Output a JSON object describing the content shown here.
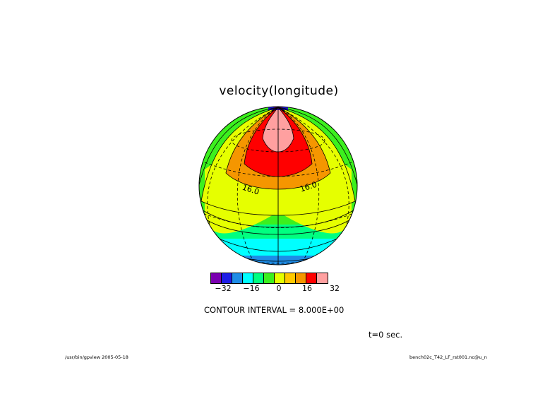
{
  "title": "velocity(longitude)",
  "contour_interval": "CONTOUR INTERVAL = 8.000E+00",
  "time_label": "t=0 sec.",
  "footer": {
    "left": "/usr/bin/gpview  2005-05-18",
    "right": "bench02c_T42_LF_rst001.nc@u_n"
  },
  "contour_labels": [
    "16.0",
    "16.0"
  ],
  "colorbar": {
    "colors": [
      "#7a00b0",
      "#1e1ee6",
      "#1e8ce6",
      "#00ffff",
      "#00ff80",
      "#3cf01e",
      "#e6ff00",
      "#ffc800",
      "#f59600",
      "#ff0000",
      "#ffa0a0"
    ],
    "tick_labels": [
      "−32",
      "−16",
      "0",
      "16",
      "32"
    ]
  }
}
